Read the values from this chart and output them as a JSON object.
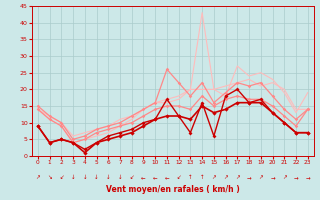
{
  "xlabel": "Vent moyen/en rafales ( km/h )",
  "background_color": "#cce8e8",
  "grid_color": "#aacccc",
  "xlim": [
    -0.5,
    23.5
  ],
  "ylim": [
    0,
    45
  ],
  "yticks": [
    0,
    5,
    10,
    15,
    20,
    25,
    30,
    35,
    40,
    45
  ],
  "xticks": [
    0,
    1,
    2,
    3,
    4,
    5,
    6,
    7,
    8,
    9,
    10,
    11,
    12,
    13,
    14,
    15,
    16,
    17,
    18,
    19,
    20,
    21,
    22,
    23
  ],
  "wind_arrows": [
    "↗",
    "↘",
    "↙",
    "↓",
    "↓",
    "↓",
    "↓",
    "↓",
    "↙",
    "←",
    "←",
    "←",
    "↙",
    "↑",
    "↑",
    "↗",
    "↗",
    "↗",
    "→",
    "↗",
    "→",
    "↗",
    "→",
    "→"
  ],
  "lines": [
    {
      "x": [
        0,
        1,
        2,
        3,
        4,
        5,
        6,
        7,
        8,
        9,
        10,
        11,
        12,
        13,
        14,
        15,
        16,
        17,
        18,
        19,
        20,
        21,
        22,
        23
      ],
      "y": [
        14,
        11,
        9,
        4,
        5,
        6,
        7,
        9,
        11,
        14,
        16,
        16,
        17,
        20,
        43,
        20,
        18,
        27,
        24,
        25,
        23,
        19,
        13,
        19
      ],
      "color": "#ffbbbb",
      "linewidth": 0.8,
      "marker": null,
      "markersize": 0
    },
    {
      "x": [
        0,
        1,
        2,
        3,
        4,
        5,
        6,
        7,
        8,
        9,
        10,
        11,
        12,
        13,
        14,
        15,
        16,
        17,
        18,
        19,
        20,
        21,
        22,
        23
      ],
      "y": [
        14,
        12,
        10,
        6,
        7,
        8,
        9,
        11,
        12,
        14,
        16,
        17,
        18,
        20,
        20,
        20,
        21,
        22,
        23,
        21,
        22,
        20,
        14,
        14
      ],
      "color": "#ffbbbb",
      "linewidth": 0.8,
      "marker": null,
      "markersize": 0
    },
    {
      "x": [
        0,
        1,
        2,
        3,
        4,
        5,
        6,
        7,
        8,
        9,
        10,
        11,
        12,
        13,
        14,
        15,
        16,
        17,
        18,
        19,
        20,
        21,
        22,
        23
      ],
      "y": [
        15,
        12,
        10,
        5,
        6,
        8,
        9,
        10,
        12,
        14,
        16,
        26,
        22,
        18,
        22,
        16,
        19,
        22,
        21,
        22,
        18,
        14,
        11,
        14
      ],
      "color": "#ff8888",
      "linewidth": 0.9,
      "marker": "D",
      "markersize": 1.8
    },
    {
      "x": [
        0,
        1,
        2,
        3,
        4,
        5,
        6,
        7,
        8,
        9,
        10,
        11,
        12,
        13,
        14,
        15,
        16,
        17,
        18,
        19,
        20,
        21,
        22,
        23
      ],
      "y": [
        14,
        11,
        9,
        4,
        5,
        7,
        8,
        9,
        10,
        12,
        14,
        15,
        15,
        14,
        18,
        15,
        17,
        18,
        17,
        17,
        15,
        12,
        9,
        14
      ],
      "color": "#ff8888",
      "linewidth": 0.9,
      "marker": "D",
      "markersize": 1.8
    },
    {
      "x": [
        0,
        1,
        2,
        3,
        4,
        5,
        6,
        7,
        8,
        9,
        10,
        11,
        12,
        13,
        14,
        15,
        16,
        17,
        18,
        19,
        20,
        21,
        22,
        23
      ],
      "y": [
        9,
        4,
        5,
        4,
        2,
        4,
        6,
        7,
        8,
        10,
        11,
        17,
        12,
        7,
        16,
        6,
        18,
        20,
        16,
        17,
        13,
        10,
        7,
        7
      ],
      "color": "#cc0000",
      "linewidth": 1.0,
      "marker": "D",
      "markersize": 2.0
    },
    {
      "x": [
        0,
        1,
        2,
        3,
        4,
        5,
        6,
        7,
        8,
        9,
        10,
        11,
        12,
        13,
        14,
        15,
        16,
        17,
        18,
        19,
        20,
        21,
        22,
        23
      ],
      "y": [
        9,
        4,
        5,
        4,
        1,
        4,
        5,
        6,
        7,
        9,
        11,
        12,
        12,
        11,
        15,
        13,
        14,
        16,
        16,
        16,
        13,
        10,
        7,
        7
      ],
      "color": "#cc0000",
      "linewidth": 1.2,
      "marker": "D",
      "markersize": 2.2
    }
  ]
}
